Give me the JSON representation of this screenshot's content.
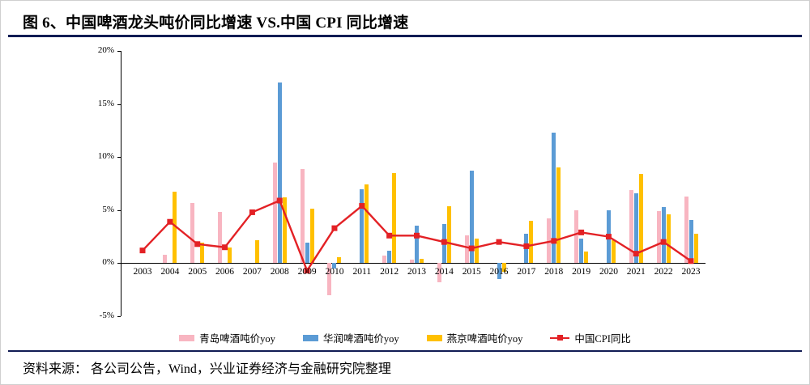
{
  "header": {
    "title": "图 6、中国啤酒龙头吨价同比增速 VS.中国 CPI 同比增速"
  },
  "footer": {
    "source": "资料来源： 各公司公告，Wind，兴业证券经济与金融研究院整理"
  },
  "colors": {
    "qingdao": "#F8B5C1",
    "huarun": "#5B9BD5",
    "yanjing": "#FFC000",
    "cpi": "#E32125",
    "rule": "#111C54",
    "axis": "#000000"
  },
  "chart_data": {
    "type": "bar+line",
    "title": "中国啤酒龙头吨价同比增速 VS. 中国CPI同比增速",
    "categories": [
      "2003",
      "2004",
      "2005",
      "2006",
      "2007",
      "2008",
      "2009",
      "2010",
      "2011",
      "2012",
      "2013",
      "2014",
      "2015",
      "2016",
      "2017",
      "2018",
      "2019",
      "2020",
      "2021",
      "2022",
      "2023"
    ],
    "unit": "%",
    "ylim": [
      -5,
      20
    ],
    "yticks": [
      20,
      15,
      10,
      5,
      0,
      -5
    ],
    "grid": false,
    "legend_position": "bottom",
    "series": [
      {
        "name": "青岛啤酒吨价yoy",
        "type": "bar",
        "color_key": "qingdao",
        "values": [
          null,
          0.8,
          5.7,
          4.8,
          null,
          9.5,
          8.9,
          -3.0,
          null,
          0.7,
          0.3,
          -1.8,
          2.6,
          null,
          null,
          4.2,
          5.0,
          null,
          6.9,
          4.9,
          6.3
        ]
      },
      {
        "name": "华润啤酒吨价yoy",
        "type": "bar",
        "color_key": "huarun",
        "values": [
          null,
          null,
          null,
          null,
          null,
          17.0,
          1.9,
          -0.5,
          7.0,
          1.2,
          3.5,
          3.7,
          8.7,
          -1.5,
          2.8,
          12.3,
          2.3,
          5.0,
          6.6,
          5.3,
          4.1
        ]
      },
      {
        "name": "燕京啤酒吨价yoy",
        "type": "bar",
        "color_key": "yanjing",
        "values": [
          null,
          6.7,
          1.9,
          1.5,
          2.2,
          6.2,
          5.1,
          0.6,
          7.4,
          8.5,
          0.4,
          5.4,
          2.3,
          -0.8,
          4.0,
          9.0,
          1.1,
          2.2,
          8.4,
          4.6,
          2.8
        ]
      },
      {
        "name": "中国CPI同比",
        "type": "line",
        "color_key": "cpi",
        "values": [
          1.2,
          3.9,
          1.8,
          1.5,
          4.8,
          5.9,
          -0.7,
          3.3,
          5.4,
          2.6,
          2.6,
          2.0,
          1.4,
          2.0,
          1.6,
          2.1,
          2.9,
          2.5,
          0.9,
          2.0,
          0.2
        ]
      }
    ]
  }
}
